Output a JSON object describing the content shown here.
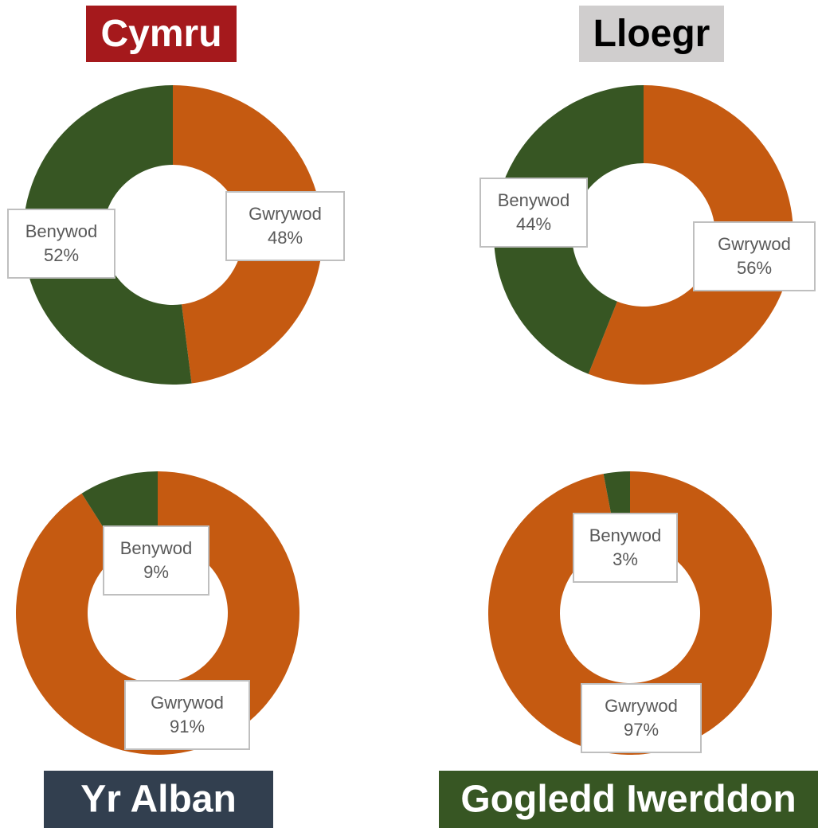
{
  "chart_data": [
    {
      "type": "donut",
      "title": "Cymru",
      "title_background": "#a5191c",
      "title_color": "#ffffff",
      "categories": [
        "Gwrywod",
        "Benywod"
      ],
      "values": [
        48,
        52
      ],
      "value_labels": [
        "48%",
        "52%"
      ],
      "colors": [
        "#c55a11",
        "#375623"
      ]
    },
    {
      "type": "donut",
      "title": "Lloegr",
      "title_background": "#d0cece",
      "title_color": "#000000",
      "categories": [
        "Gwrywod",
        "Benywod"
      ],
      "values": [
        56,
        44
      ],
      "value_labels": [
        "56%",
        "44%"
      ],
      "colors": [
        "#c55a11",
        "#375623"
      ]
    },
    {
      "type": "donut",
      "title": "Yr Alban",
      "title_background": "#323f4f",
      "title_color": "#ffffff",
      "categories": [
        "Gwrywod",
        "Benywod"
      ],
      "values": [
        91,
        9
      ],
      "value_labels": [
        "91%",
        "9%"
      ],
      "colors": [
        "#c55a11",
        "#375623"
      ]
    },
    {
      "type": "donut",
      "title": "Gogledd Iwerddon",
      "title_background": "#375623",
      "title_color": "#ffffff",
      "categories": [
        "Gwrywod",
        "Benywod"
      ],
      "values": [
        97,
        3
      ],
      "value_labels": [
        "97%",
        "3%"
      ],
      "colors": [
        "#c55a11",
        "#375623"
      ]
    }
  ]
}
